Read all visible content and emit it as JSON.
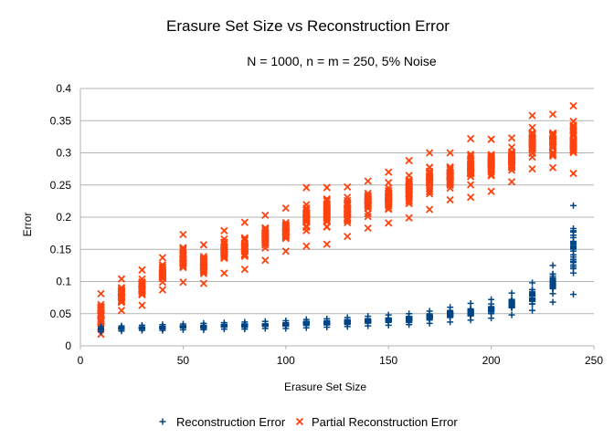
{
  "chart_data": {
    "type": "scatter",
    "title": "Erasure Set Size vs Reconstruction Error",
    "subtitle": "N = 1000, n = m = 250, 5% Noise",
    "xlabel": "Erasure Set Size",
    "ylabel": "Error",
    "xlim": [
      0,
      250
    ],
    "ylim": [
      0,
      0.4
    ],
    "x_ticks": [
      "0",
      "50",
      "100",
      "150",
      "200",
      "250"
    ],
    "y_ticks": [
      "0",
      "0.05",
      "0.1",
      "0.15",
      "0.2",
      "0.25",
      "0.3",
      "0.35",
      "0.4"
    ],
    "grid": "horizontal",
    "legend": "bottom",
    "series": [
      {
        "name": "Reconstruction Error",
        "marker": "plus",
        "color": "#004586",
        "ranges": [
          {
            "x": 10,
            "min": 0.022,
            "max": 0.03
          },
          {
            "x": 20,
            "min": 0.023,
            "max": 0.031
          },
          {
            "x": 30,
            "min": 0.024,
            "max": 0.032
          },
          {
            "x": 40,
            "min": 0.024,
            "max": 0.033
          },
          {
            "x": 50,
            "min": 0.025,
            "max": 0.034
          },
          {
            "x": 60,
            "min": 0.025,
            "max": 0.035
          },
          {
            "x": 70,
            "min": 0.026,
            "max": 0.036
          },
          {
            "x": 80,
            "min": 0.026,
            "max": 0.037
          },
          {
            "x": 90,
            "min": 0.027,
            "max": 0.038
          },
          {
            "x": 100,
            "min": 0.027,
            "max": 0.039
          },
          {
            "x": 110,
            "min": 0.028,
            "max": 0.041
          },
          {
            "x": 120,
            "min": 0.029,
            "max": 0.042
          },
          {
            "x": 130,
            "min": 0.03,
            "max": 0.044
          },
          {
            "x": 140,
            "min": 0.031,
            "max": 0.046
          },
          {
            "x": 150,
            "min": 0.032,
            "max": 0.048
          },
          {
            "x": 160,
            "min": 0.033,
            "max": 0.05
          },
          {
            "x": 170,
            "min": 0.035,
            "max": 0.054
          },
          {
            "x": 180,
            "min": 0.037,
            "max": 0.06
          },
          {
            "x": 190,
            "min": 0.04,
            "max": 0.066
          },
          {
            "x": 200,
            "min": 0.043,
            "max": 0.072
          },
          {
            "x": 210,
            "min": 0.048,
            "max": 0.082
          },
          {
            "x": 220,
            "min": 0.055,
            "max": 0.098
          },
          {
            "x": 230,
            "min": 0.068,
            "max": 0.125
          },
          {
            "x": 240,
            "min": 0.08,
            "max": 0.218
          }
        ]
      },
      {
        "name": "Partial Reconstruction Error",
        "marker": "x",
        "color": "#ff420e",
        "ranges": [
          {
            "x": 10,
            "min": 0.018,
            "max": 0.081
          },
          {
            "x": 20,
            "min": 0.055,
            "max": 0.104
          },
          {
            "x": 30,
            "min": 0.063,
            "max": 0.118
          },
          {
            "x": 40,
            "min": 0.087,
            "max": 0.137
          },
          {
            "x": 50,
            "min": 0.099,
            "max": 0.173
          },
          {
            "x": 60,
            "min": 0.097,
            "max": 0.157
          },
          {
            "x": 70,
            "min": 0.113,
            "max": 0.179
          },
          {
            "x": 80,
            "min": 0.119,
            "max": 0.192
          },
          {
            "x": 90,
            "min": 0.133,
            "max": 0.203
          },
          {
            "x": 100,
            "min": 0.147,
            "max": 0.214
          },
          {
            "x": 110,
            "min": 0.155,
            "max": 0.246
          },
          {
            "x": 120,
            "min": 0.158,
            "max": 0.246
          },
          {
            "x": 130,
            "min": 0.17,
            "max": 0.247
          },
          {
            "x": 140,
            "min": 0.183,
            "max": 0.256
          },
          {
            "x": 150,
            "min": 0.191,
            "max": 0.27
          },
          {
            "x": 160,
            "min": 0.199,
            "max": 0.288
          },
          {
            "x": 170,
            "min": 0.212,
            "max": 0.3
          },
          {
            "x": 180,
            "min": 0.227,
            "max": 0.3
          },
          {
            "x": 190,
            "min": 0.231,
            "max": 0.322
          },
          {
            "x": 200,
            "min": 0.24,
            "max": 0.321
          },
          {
            "x": 210,
            "min": 0.255,
            "max": 0.323
          },
          {
            "x": 220,
            "min": 0.275,
            "max": 0.358
          },
          {
            "x": 230,
            "min": 0.277,
            "max": 0.36
          },
          {
            "x": 240,
            "min": 0.268,
            "max": 0.373
          }
        ]
      }
    ]
  }
}
